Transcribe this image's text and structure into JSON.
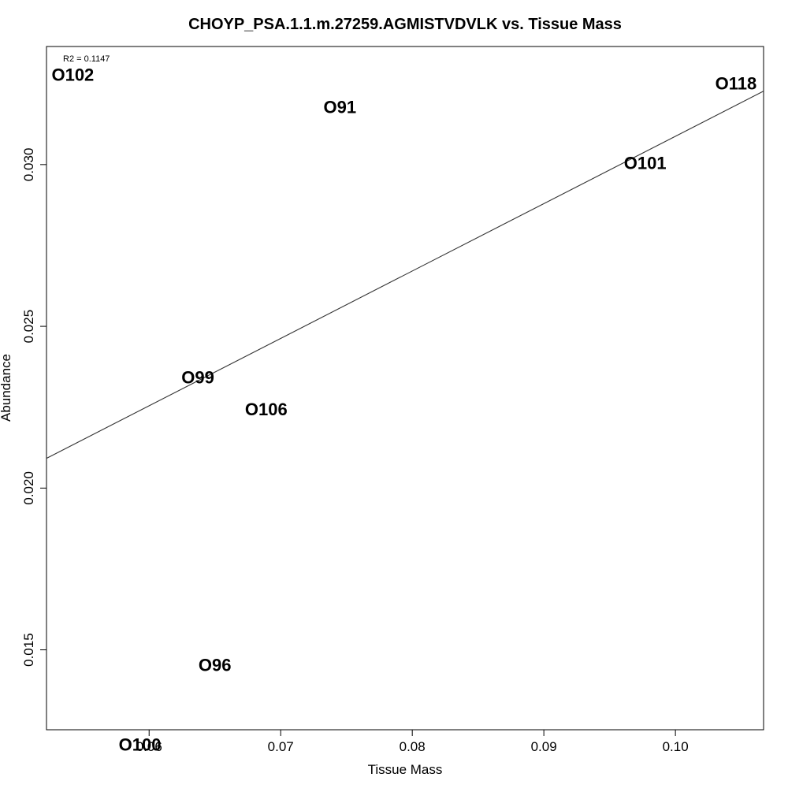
{
  "chart_data": {
    "type": "scatter",
    "title": "CHOYP_PSA.1.1.m.27259.AGMISTVDVLK vs. Tissue Mass",
    "xlabel": "Tissue Mass",
    "ylabel": "Abundance",
    "xlim": [
      0.0522,
      0.1067
    ],
    "ylim": [
      0.01253,
      0.03365
    ],
    "x_ticks": [
      0.06,
      0.07,
      0.08,
      0.09,
      0.1
    ],
    "x_tick_labels": [
      "0.06",
      "0.07",
      "0.08",
      "0.09",
      "0.10"
    ],
    "y_ticks": [
      0.015,
      0.02,
      0.025,
      0.03
    ],
    "y_tick_labels": [
      "0.015",
      "0.020",
      "0.025",
      "0.030"
    ],
    "grid": false,
    "annotation": "R2 = 0.1147",
    "points": [
      {
        "label": "O102",
        "x": 0.0542,
        "y": 0.03277
      },
      {
        "label": "O91",
        "x": 0.0745,
        "y": 0.03178
      },
      {
        "label": "O118",
        "x": 0.1046,
        "y": 0.0325
      },
      {
        "label": "O101",
        "x": 0.0977,
        "y": 0.03005
      },
      {
        "label": "O99",
        "x": 0.0637,
        "y": 0.02342
      },
      {
        "label": "O106",
        "x": 0.0689,
        "y": 0.02243
      },
      {
        "label": "O96",
        "x": 0.065,
        "y": 0.01453
      },
      {
        "label": "O100",
        "x": 0.0593,
        "y": 0.01207
      }
    ],
    "regression_line": {
      "x": [
        0.0522,
        0.1067
      ],
      "y": [
        0.02092,
        0.03227
      ]
    }
  }
}
